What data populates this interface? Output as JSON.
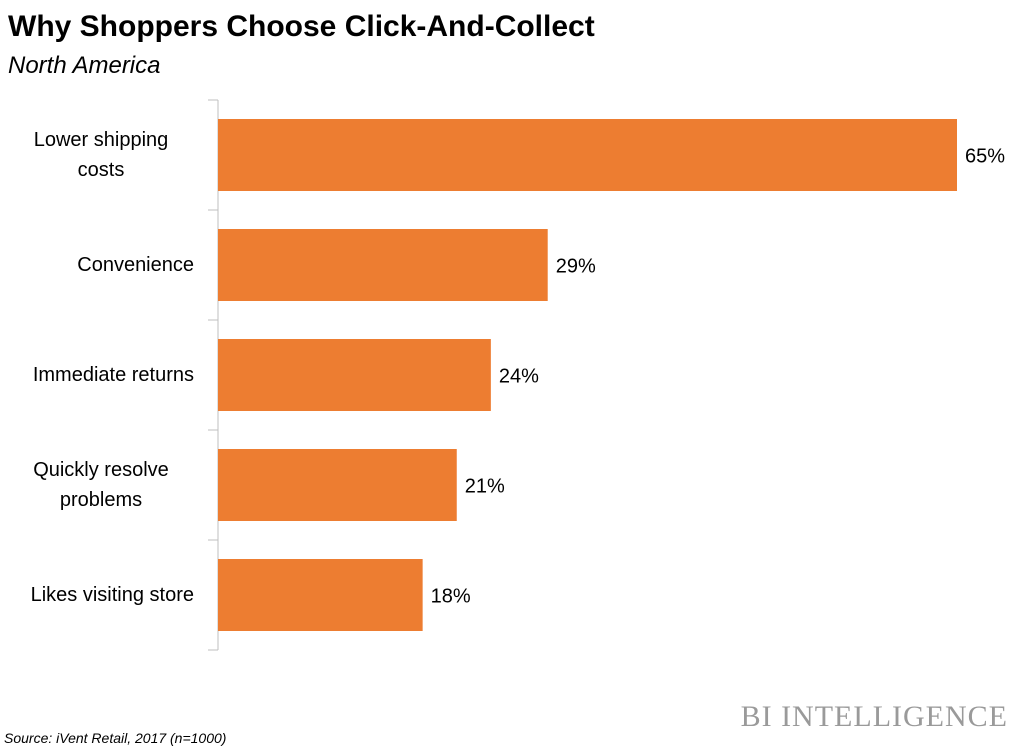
{
  "chart_data": {
    "type": "bar",
    "orientation": "horizontal",
    "title": "Why Shoppers Choose Click-And-Collect",
    "subtitle": "North America",
    "categories": [
      "Lower shipping costs",
      "Convenience",
      "Immediate returns",
      "Quickly resolve problems",
      "Likes visiting store"
    ],
    "values": [
      65,
      29,
      24,
      21,
      18
    ],
    "value_labels": [
      "65%",
      "29%",
      "24%",
      "21%",
      "18%"
    ],
    "color": "#ed7d31",
    "source": "Source: iVent Retail, 2017 (n=1000)",
    "logo": "BI INTELLIGENCE"
  }
}
